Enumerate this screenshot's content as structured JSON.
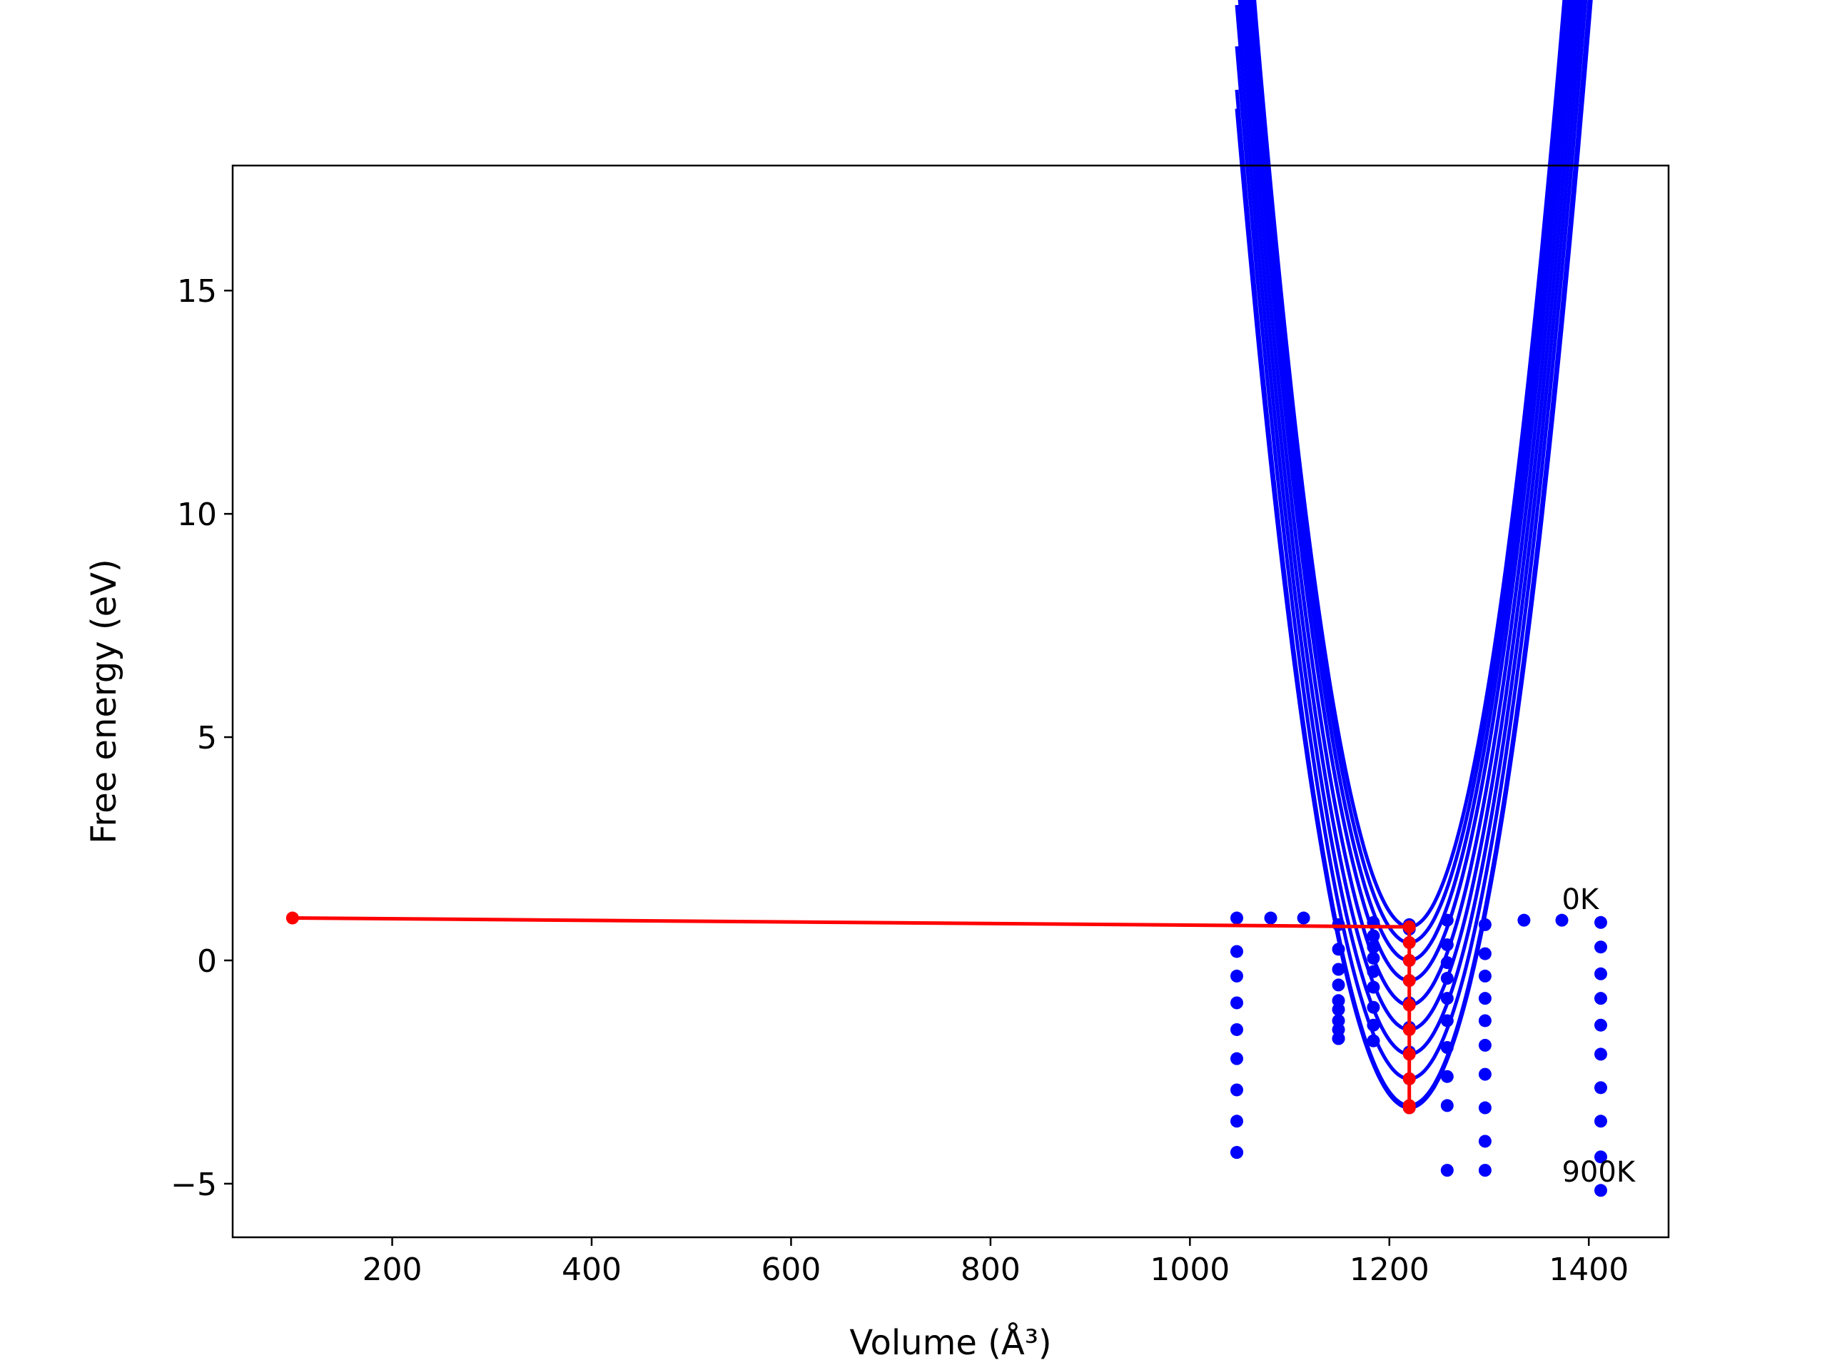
{
  "chart_data": {
    "type": "line",
    "title": "",
    "xlabel": "Volume (Å³)",
    "ylabel": "Free energy (eV)",
    "xlim": [
      40,
      1480
    ],
    "ylim": [
      -6.2,
      17.8
    ],
    "xticks": [
      200,
      400,
      600,
      800,
      1000,
      1200,
      1400
    ],
    "xtick_labels": [
      "200",
      "400",
      "600",
      "800",
      "1000",
      "1200",
      "1400"
    ],
    "yticks": [
      -5,
      0,
      5,
      10,
      15
    ],
    "ytick_labels": [
      "−5",
      "0",
      "5",
      "10",
      "15"
    ],
    "grid": false,
    "legend": "none",
    "colors": {
      "curves": "#0000ff",
      "points": "#0000ff",
      "minima_path": "#ff0000"
    },
    "temperatures_K": [
      0,
      100,
      200,
      300,
      400,
      500,
      600,
      700,
      800,
      900
    ],
    "fit_volume_range": [
      1047,
      1412
    ],
    "volumes": [
      1047,
      1149,
      1184,
      1220,
      1258,
      1296,
      1412
    ],
    "series": [
      {
        "values": [
          0.95,
          0.8,
          0.85,
          0.8,
          0.9,
          0.8,
          0.85
        ]
      },
      {
        "values": [
          0.2,
          0.25,
          0.55,
          0.7,
          0.35,
          0.15,
          0.3
        ]
      },
      {
        "values": [
          -0.35,
          -0.2,
          0.3,
          0.4,
          -0.05,
          -0.35,
          -0.3
        ]
      },
      {
        "values": [
          -0.95,
          -0.55,
          0.05,
          0.0,
          -0.4,
          -0.85,
          -0.85
        ]
      },
      {
        "values": [
          -1.55,
          -0.9,
          -0.25,
          -0.45,
          -0.85,
          -1.35,
          -1.45
        ]
      },
      {
        "values": [
          -2.2,
          -1.1,
          -0.6,
          -0.95,
          -1.35,
          -1.9,
          -2.1
        ]
      },
      {
        "values": [
          -2.9,
          -1.35,
          -1.05,
          -1.5,
          -1.95,
          -2.55,
          -2.85
        ]
      },
      {
        "values": [
          -3.6,
          -1.55,
          -1.45,
          -2.05,
          -2.6,
          -3.3,
          -3.6
        ]
      },
      {
        "values": [
          -4.3,
          -1.75,
          -1.8,
          -2.65,
          -3.25,
          -4.05,
          -4.4
        ]
      },
      {
        "values": [
          -4.3,
          -1.75,
          -1.8,
          -3.3,
          -4.7,
          -4.7,
          -5.15
        ]
      }
    ],
    "fit_minima": {
      "volume": 1220,
      "values": [
        0.75,
        0.4,
        0.0,
        -0.45,
        -1.0,
        -1.55,
        -2.1,
        -2.65,
        -3.25,
        -3.3
      ]
    },
    "extra_points": [
      {
        "x": 1081,
        "y": 0.95
      },
      {
        "x": 1114,
        "y": 0.95
      },
      {
        "x": 1335,
        "y": 0.9
      },
      {
        "x": 1373,
        "y": 0.9
      }
    ],
    "minima_path": {
      "x": [
        100,
        1220,
        1220,
        1220,
        1220,
        1220,
        1220,
        1220,
        1220,
        1220,
        1220
      ],
      "y": [
        0.95,
        0.75,
        0.4,
        0.0,
        -0.45,
        -1.0,
        -1.55,
        -2.1,
        -2.65,
        -3.25,
        -3.3
      ]
    },
    "annotations": [
      {
        "text": "0K",
        "x": 1373,
        "y": 1.15
      },
      {
        "text": "900K",
        "x": 1373,
        "y": -4.95
      }
    ]
  }
}
